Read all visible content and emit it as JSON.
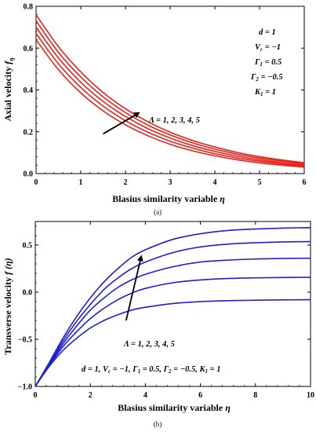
{
  "chart_data": [
    {
      "type": "line",
      "panel_label": "(a)",
      "xlabel": "Blasius similarity variable η",
      "ylabel": "Axial velocity f_η",
      "xlim": [
        0,
        6
      ],
      "ylim": [
        0,
        0.8
      ],
      "xticks": [
        "0",
        "1",
        "2",
        "3",
        "4",
        "5",
        "6"
      ],
      "yticks": [
        "0.0",
        "0.2",
        "0.4",
        "0.6",
        "0.8"
      ],
      "x": [
        0,
        0.5,
        1,
        1.5,
        2,
        2.5,
        3,
        3.5,
        4,
        4.5,
        5,
        5.5,
        6
      ],
      "series": [
        {
          "values": [
            0.64,
            0.497,
            0.386,
            0.3,
            0.233,
            0.181,
            0.14,
            0.109,
            0.085,
            0.066,
            0.051,
            0.04,
            0.031
          ]
        },
        {
          "values": [
            0.67,
            0.525,
            0.412,
            0.323,
            0.253,
            0.198,
            0.155,
            0.122,
            0.095,
            0.075,
            0.059,
            0.046,
            0.036
          ]
        },
        {
          "values": [
            0.7,
            0.553,
            0.437,
            0.345,
            0.273,
            0.215,
            0.17,
            0.134,
            0.106,
            0.084,
            0.066,
            0.052,
            0.041
          ]
        },
        {
          "values": [
            0.73,
            0.58,
            0.462,
            0.367,
            0.292,
            0.232,
            0.185,
            0.147,
            0.117,
            0.093,
            0.074,
            0.059,
            0.047
          ]
        },
        {
          "values": [
            0.76,
            0.607,
            0.486,
            0.388,
            0.31,
            0.248,
            0.198,
            0.158,
            0.127,
            0.101,
            0.081,
            0.065,
            0.052
          ]
        }
      ],
      "line_color": "#e8201a",
      "arrow": {
        "from": [
          1.5,
          0.19
        ],
        "to": [
          2.3,
          0.29
        ]
      },
      "arrow_label": "Λ = 1, 2, 3, 4, 5",
      "params": [
        "d = 1",
        "V_c = −1",
        "Γ_1 = 0.5",
        "Γ_2 = −0.5",
        "K_1 = 1"
      ]
    },
    {
      "type": "line",
      "panel_label": "(b)",
      "xlabel": "Blasius similarity variable η",
      "ylabel": "Transverse velocity f (η)",
      "xlim": [
        0,
        10
      ],
      "ylim": [
        -1.0,
        0.75
      ],
      "xticks": [
        "0",
        "2",
        "4",
        "6",
        "8",
        "10"
      ],
      "yticks": [
        "−1.0",
        "−0.5",
        "0.0",
        "0.5"
      ],
      "x": [
        0,
        0.5,
        1,
        1.5,
        2,
        2.5,
        3,
        3.5,
        4,
        5,
        6,
        7,
        8,
        9,
        10
      ],
      "series": [
        {
          "values": [
            -1.0,
            -0.79,
            -0.62,
            -0.49,
            -0.38,
            -0.3,
            -0.24,
            -0.19,
            -0.16,
            -0.12,
            -0.1,
            -0.09,
            -0.085,
            -0.082,
            -0.08
          ]
        },
        {
          "values": [
            -1.0,
            -0.78,
            -0.58,
            -0.42,
            -0.28,
            -0.17,
            -0.08,
            -0.01,
            0.04,
            0.1,
            0.13,
            0.145,
            0.152,
            0.156,
            0.158
          ]
        },
        {
          "values": [
            -1.0,
            -0.77,
            -0.55,
            -0.36,
            -0.19,
            -0.06,
            0.05,
            0.13,
            0.19,
            0.27,
            0.32,
            0.34,
            0.352,
            0.358,
            0.36
          ]
        },
        {
          "values": [
            -1.0,
            -0.76,
            -0.52,
            -0.31,
            -0.13,
            0.03,
            0.15,
            0.25,
            0.32,
            0.42,
            0.48,
            0.51,
            0.525,
            0.533,
            0.537
          ]
        },
        {
          "values": [
            -1.0,
            -0.75,
            -0.49,
            -0.26,
            -0.06,
            0.11,
            0.25,
            0.37,
            0.45,
            0.56,
            0.62,
            0.655,
            0.67,
            0.68,
            0.685
          ]
        }
      ],
      "line_color": "#1f1fd2",
      "arrow": {
        "from": [
          3.3,
          -0.3
        ],
        "to": [
          3.85,
          0.38
        ]
      },
      "arrow_label": "Λ = 1, 2, 3, 4, 5",
      "params_line": "d = 1, V_c = −1, Γ_1 = 0.5, Γ_2 = −0.5, K_1 = 1"
    }
  ]
}
